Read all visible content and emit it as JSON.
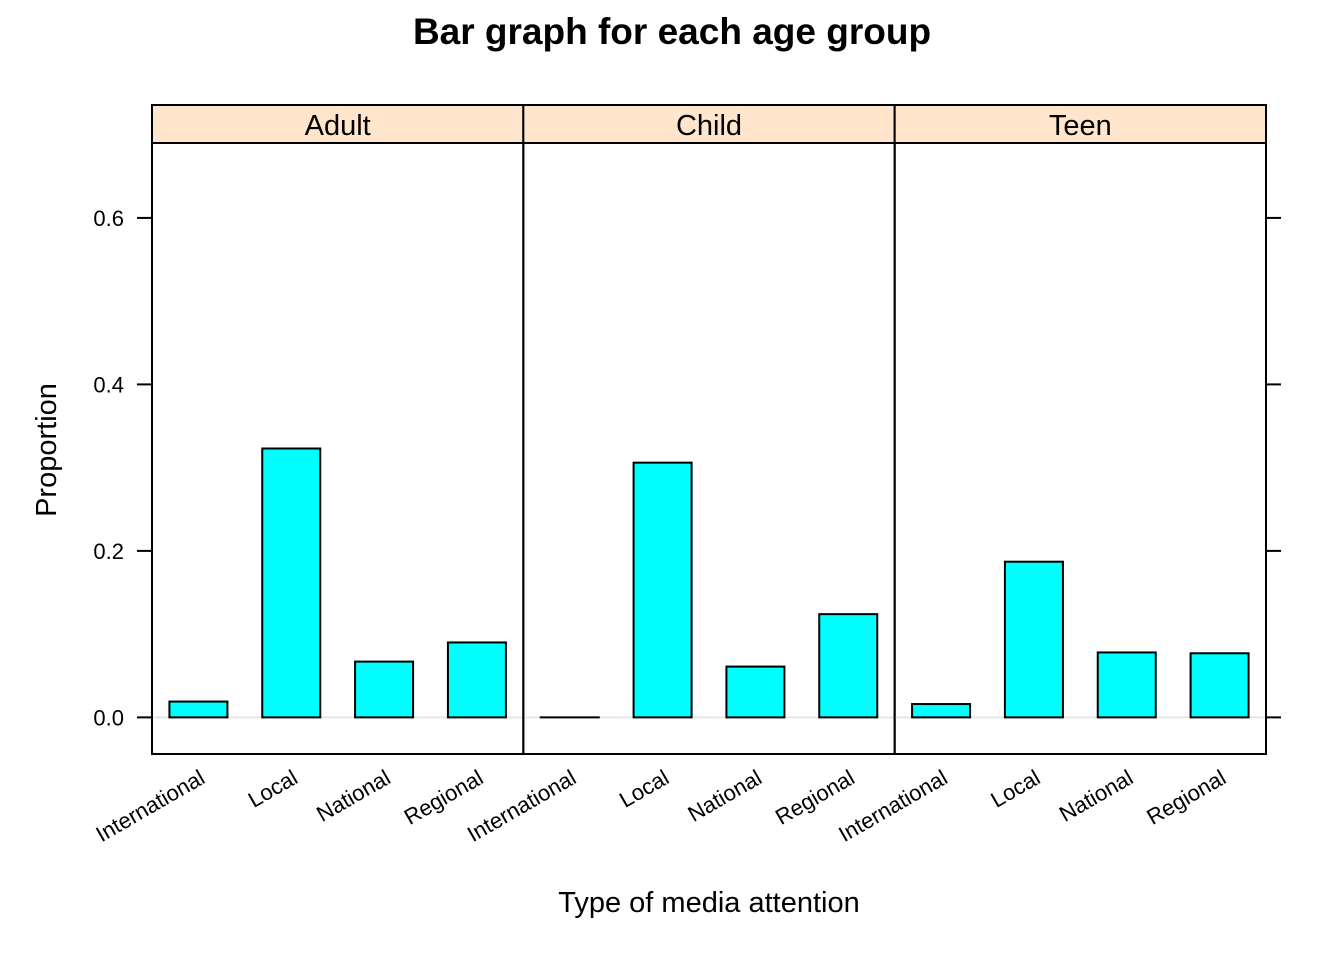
{
  "chart_data": {
    "type": "bar",
    "title": "Bar graph for each age group",
    "xlabel": "Type of media attention",
    "ylabel": "Proportion",
    "ylim": [
      -0.044,
      0.69
    ],
    "yticks": [
      0.0,
      0.2,
      0.4,
      0.6
    ],
    "ytick_labels": [
      "0.0",
      "0.2",
      "0.4",
      "0.6"
    ],
    "categories": [
      "International",
      "Local",
      "National",
      "Regional"
    ],
    "panels": [
      {
        "name": "Adult",
        "values": [
          0.019,
          0.323,
          0.067,
          0.09
        ]
      },
      {
        "name": "Child",
        "values": [
          0.0,
          0.306,
          0.061,
          0.124
        ]
      },
      {
        "name": "Teen",
        "values": [
          0.016,
          0.187,
          0.078,
          0.077
        ]
      }
    ],
    "colors": {
      "bar_fill": "#00ffff",
      "bar_stroke": "#000000",
      "strip_fill": "#ffe5cc",
      "reference_line": "#e6e6e6"
    },
    "grid": false,
    "legend": "none"
  }
}
